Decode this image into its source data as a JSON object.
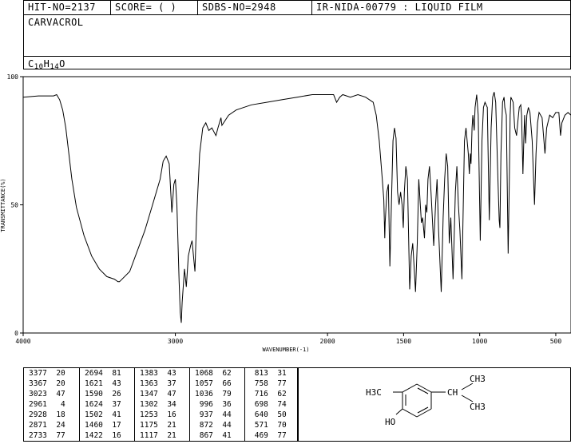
{
  "header": {
    "hit_no": "HIT-NO=2137",
    "score": "SCORE=  (   )",
    "sdbs_no": "SDBS-NO=2948",
    "ir_code": "IR-NIDA-00779 : LIQUID FILM",
    "compound_name": "CARVACROL",
    "formula": {
      "c": "C",
      "c_n": "10",
      "h": "H",
      "h_n": "14",
      "o": "O"
    }
  },
  "chart_data": {
    "type": "line",
    "title": "",
    "xlabel": "WAVENUMBER(-1)",
    "ylabel": "TRANSMITTANCE(%)",
    "xlim": [
      4000,
      400
    ],
    "ylim": [
      0,
      100
    ],
    "x_ticks": [
      4000,
      3000,
      2000,
      1500,
      1000,
      500
    ],
    "x_tick_labels": [
      "4000",
      "3000",
      "2000",
      "1500",
      "1000",
      "500"
    ],
    "y_ticks": [
      0,
      50,
      100
    ],
    "y_tick_labels": [
      "0",
      "50",
      "100"
    ],
    "series": [
      {
        "points": [
          [
            4000,
            92
          ],
          [
            3900,
            92.5
          ],
          [
            3800,
            92.5
          ],
          [
            3780,
            93
          ],
          [
            3760,
            91
          ],
          [
            3740,
            87
          ],
          [
            3720,
            80
          ],
          [
            3700,
            70
          ],
          [
            3680,
            60
          ],
          [
            3650,
            49
          ],
          [
            3600,
            38
          ],
          [
            3550,
            30
          ],
          [
            3500,
            25
          ],
          [
            3450,
            22
          ],
          [
            3400,
            21
          ],
          [
            3377,
            20
          ],
          [
            3367,
            20
          ],
          [
            3300,
            24
          ],
          [
            3250,
            32
          ],
          [
            3200,
            40
          ],
          [
            3150,
            50
          ],
          [
            3100,
            60
          ],
          [
            3080,
            67
          ],
          [
            3060,
            69
          ],
          [
            3040,
            66
          ],
          [
            3023,
            47
          ],
          [
            3010,
            58
          ],
          [
            3000,
            60
          ],
          [
            2990,
            50
          ],
          [
            2975,
            20
          ],
          [
            2968,
            8
          ],
          [
            2961,
            4
          ],
          [
            2955,
            12
          ],
          [
            2940,
            25
          ],
          [
            2928,
            18
          ],
          [
            2915,
            30
          ],
          [
            2900,
            34
          ],
          [
            2890,
            36
          ],
          [
            2871,
            24
          ],
          [
            2860,
            45
          ],
          [
            2840,
            70
          ],
          [
            2820,
            80
          ],
          [
            2800,
            82
          ],
          [
            2780,
            79
          ],
          [
            2760,
            80
          ],
          [
            2733,
            77
          ],
          [
            2720,
            80
          ],
          [
            2700,
            84
          ],
          [
            2694,
            81
          ],
          [
            2650,
            85
          ],
          [
            2600,
            87
          ],
          [
            2500,
            89
          ],
          [
            2400,
            90
          ],
          [
            2300,
            91
          ],
          [
            2200,
            92
          ],
          [
            2100,
            93
          ],
          [
            2000,
            93
          ],
          [
            1960,
            93
          ],
          [
            1940,
            90
          ],
          [
            1920,
            92
          ],
          [
            1900,
            93
          ],
          [
            1850,
            92
          ],
          [
            1800,
            93
          ],
          [
            1750,
            92
          ],
          [
            1700,
            90
          ],
          [
            1680,
            85
          ],
          [
            1660,
            75
          ],
          [
            1640,
            60
          ],
          [
            1630,
            52
          ],
          [
            1624,
            37
          ],
          [
            1621,
            43
          ],
          [
            1610,
            55
          ],
          [
            1600,
            58
          ],
          [
            1590,
            26
          ],
          [
            1580,
            50
          ],
          [
            1570,
            75
          ],
          [
            1560,
            80
          ],
          [
            1550,
            76
          ],
          [
            1540,
            55
          ],
          [
            1530,
            50
          ],
          [
            1520,
            55
          ],
          [
            1510,
            50
          ],
          [
            1502,
            41
          ],
          [
            1495,
            55
          ],
          [
            1485,
            65
          ],
          [
            1475,
            60
          ],
          [
            1460,
            17
          ],
          [
            1450,
            30
          ],
          [
            1440,
            35
          ],
          [
            1430,
            25
          ],
          [
            1422,
            16
          ],
          [
            1410,
            35
          ],
          [
            1400,
            60
          ],
          [
            1390,
            50
          ],
          [
            1383,
            43
          ],
          [
            1375,
            45
          ],
          [
            1363,
            37
          ],
          [
            1355,
            50
          ],
          [
            1347,
            47
          ],
          [
            1340,
            60
          ],
          [
            1330,
            65
          ],
          [
            1320,
            55
          ],
          [
            1302,
            34
          ],
          [
            1290,
            50
          ],
          [
            1280,
            60
          ],
          [
            1270,
            40
          ],
          [
            1253,
            16
          ],
          [
            1240,
            45
          ],
          [
            1230,
            60
          ],
          [
            1220,
            70
          ],
          [
            1210,
            65
          ],
          [
            1200,
            35
          ],
          [
            1190,
            45
          ],
          [
            1175,
            21
          ],
          [
            1160,
            55
          ],
          [
            1150,
            65
          ],
          [
            1140,
            50
          ],
          [
            1130,
            40
          ],
          [
            1117,
            21
          ],
          [
            1105,
            60
          ],
          [
            1100,
            75
          ],
          [
            1090,
            80
          ],
          [
            1075,
            70
          ],
          [
            1068,
            62
          ],
          [
            1062,
            70
          ],
          [
            1057,
            66
          ],
          [
            1050,
            80
          ],
          [
            1045,
            85
          ],
          [
            1036,
            79
          ],
          [
            1030,
            88
          ],
          [
            1020,
            93
          ],
          [
            1010,
            85
          ],
          [
            996,
            36
          ],
          [
            985,
            75
          ],
          [
            975,
            88
          ],
          [
            965,
            90
          ],
          [
            950,
            88
          ],
          [
            937,
            44
          ],
          [
            925,
            80
          ],
          [
            915,
            92
          ],
          [
            905,
            94
          ],
          [
            895,
            90
          ],
          [
            880,
            60
          ],
          [
            872,
            44
          ],
          [
            867,
            41
          ],
          [
            860,
            70
          ],
          [
            850,
            90
          ],
          [
            840,
            92
          ],
          [
            835,
            88
          ],
          [
            825,
            85
          ],
          [
            813,
            31
          ],
          [
            805,
            60
          ],
          [
            800,
            85
          ],
          [
            795,
            92
          ],
          [
            780,
            90
          ],
          [
            770,
            80
          ],
          [
            758,
            77
          ],
          [
            750,
            82
          ],
          [
            740,
            88
          ],
          [
            730,
            89
          ],
          [
            725,
            85
          ],
          [
            716,
            62
          ],
          [
            710,
            75
          ],
          [
            705,
            85
          ],
          [
            698,
            74
          ],
          [
            690,
            85
          ],
          [
            680,
            88
          ],
          [
            670,
            86
          ],
          [
            655,
            75
          ],
          [
            640,
            50
          ],
          [
            630,
            70
          ],
          [
            620,
            82
          ],
          [
            610,
            86
          ],
          [
            590,
            84
          ],
          [
            571,
            70
          ],
          [
            560,
            80
          ],
          [
            540,
            85
          ],
          [
            520,
            84
          ],
          [
            500,
            86
          ],
          [
            480,
            86
          ],
          [
            469,
            77
          ],
          [
            460,
            82
          ],
          [
            440,
            85
          ],
          [
            420,
            86
          ],
          [
            400,
            85
          ]
        ]
      }
    ]
  },
  "peak_table": {
    "columns": [
      [
        [
          "3377",
          "20"
        ],
        [
          "3367",
          "20"
        ],
        [
          "3023",
          "47"
        ],
        [
          "2961",
          "4"
        ],
        [
          "2928",
          "18"
        ],
        [
          "2871",
          "24"
        ],
        [
          "2733",
          "77"
        ]
      ],
      [
        [
          "2694",
          "81"
        ],
        [
          "1621",
          "43"
        ],
        [
          "1590",
          "26"
        ],
        [
          "1624",
          "37"
        ],
        [
          "1502",
          "41"
        ],
        [
          "1460",
          "17"
        ],
        [
          "1422",
          "16"
        ]
      ],
      [
        [
          "1383",
          "43"
        ],
        [
          "1363",
          "37"
        ],
        [
          "1347",
          "47"
        ],
        [
          "1302",
          "34"
        ],
        [
          "1253",
          "16"
        ],
        [
          "1175",
          "21"
        ],
        [
          "1117",
          "21"
        ]
      ],
      [
        [
          "1068",
          "62"
        ],
        [
          "1057",
          "66"
        ],
        [
          "1036",
          "79"
        ],
        [
          "996",
          "36"
        ],
        [
          "937",
          "44"
        ],
        [
          "872",
          "44"
        ],
        [
          "867",
          "41"
        ]
      ],
      [
        [
          "813",
          "31"
        ],
        [
          "758",
          "77"
        ],
        [
          "716",
          "62"
        ],
        [
          "698",
          "74"
        ],
        [
          "640",
          "50"
        ],
        [
          "571",
          "70"
        ],
        [
          "469",
          "77"
        ]
      ]
    ]
  },
  "structure": {
    "ch3_top": "CH3",
    "ch": "CH",
    "ch3_bottom": "CH3",
    "h3c": "H3C",
    "ho": "HO"
  }
}
